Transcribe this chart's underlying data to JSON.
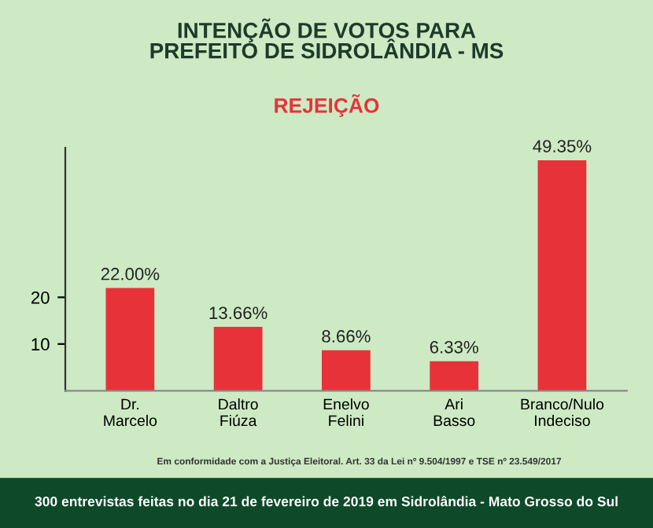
{
  "chart_data": {
    "type": "bar",
    "title": "INTENÇÃO DE VOTOS PARA\nPREFEITO DE SIDROLÂNDIA - MS",
    "subtitle": "REJEIÇÃO",
    "categories": [
      "Dr.\nMarcelo",
      "Daltro\nFiúza",
      "Enelvo\nFelini",
      "Ari\nBasso",
      "Branco/Nulo\nIndeciso"
    ],
    "values": [
      22.0,
      13.66,
      8.66,
      6.33,
      49.35
    ],
    "value_labels": [
      "22.00%",
      "13.66%",
      "8.66%",
      "6.33%",
      "49.35%"
    ],
    "color": "#e8323a",
    "ylim": [
      0,
      52
    ],
    "yticks": [
      10,
      20
    ],
    "grid": false,
    "annotations": [
      "Em conformidade com a Justiça Eleitoral. Art. 33 da Lei nº 9.504/1997 e TSE nº 23.549/2017",
      "300 entrevistas feitas no dia 21 de fevereiro de 2019 em Sidrolândia - Mato Grosso do Sul"
    ]
  }
}
